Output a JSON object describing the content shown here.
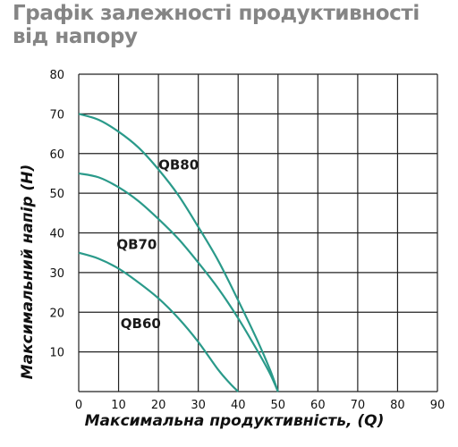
{
  "chart_data": {
    "type": "line",
    "title": "Графік залежності продуктивності від напору",
    "xlabel": "Максимальна продуктивність, (Q)",
    "ylabel": "Максимальний напір (H)",
    "xlim": [
      0,
      90
    ],
    "ylim": [
      0,
      80
    ],
    "x_ticks": [
      "0",
      "10",
      "20",
      "30",
      "40",
      "50",
      "60",
      "70",
      "80",
      "90"
    ],
    "y_ticks": [
      "10",
      "20",
      "30",
      "40",
      "50",
      "60",
      "70",
      "80"
    ],
    "grid": true,
    "series": [
      {
        "name": "QB80",
        "color": "#2a9a8a",
        "x": [
          0,
          5,
          10,
          15,
          20,
          25,
          30,
          35,
          40,
          45,
          48,
          50
        ],
        "y": [
          70,
          68.5,
          65.5,
          61.5,
          56,
          49.5,
          41.5,
          33,
          23,
          12.5,
          5.5,
          0
        ],
        "label_at": [
          20,
          56
        ]
      },
      {
        "name": "QB70",
        "color": "#2a9a8a",
        "x": [
          0,
          5,
          10,
          15,
          20,
          25,
          30,
          35,
          40,
          45,
          48,
          50
        ],
        "y": [
          55,
          54,
          51.5,
          48,
          43.5,
          38.5,
          32.5,
          26,
          18.5,
          10,
          4.5,
          0
        ],
        "label_at": [
          9.5,
          36
        ]
      },
      {
        "name": "QB60",
        "color": "#2a9a8a",
        "x": [
          0,
          5,
          10,
          15,
          20,
          25,
          30,
          35,
          38,
          40
        ],
        "y": [
          35,
          33.5,
          31,
          27.5,
          23.5,
          18.5,
          12.5,
          5.5,
          2,
          0
        ],
        "label_at": [
          10.5,
          16
        ]
      }
    ]
  }
}
